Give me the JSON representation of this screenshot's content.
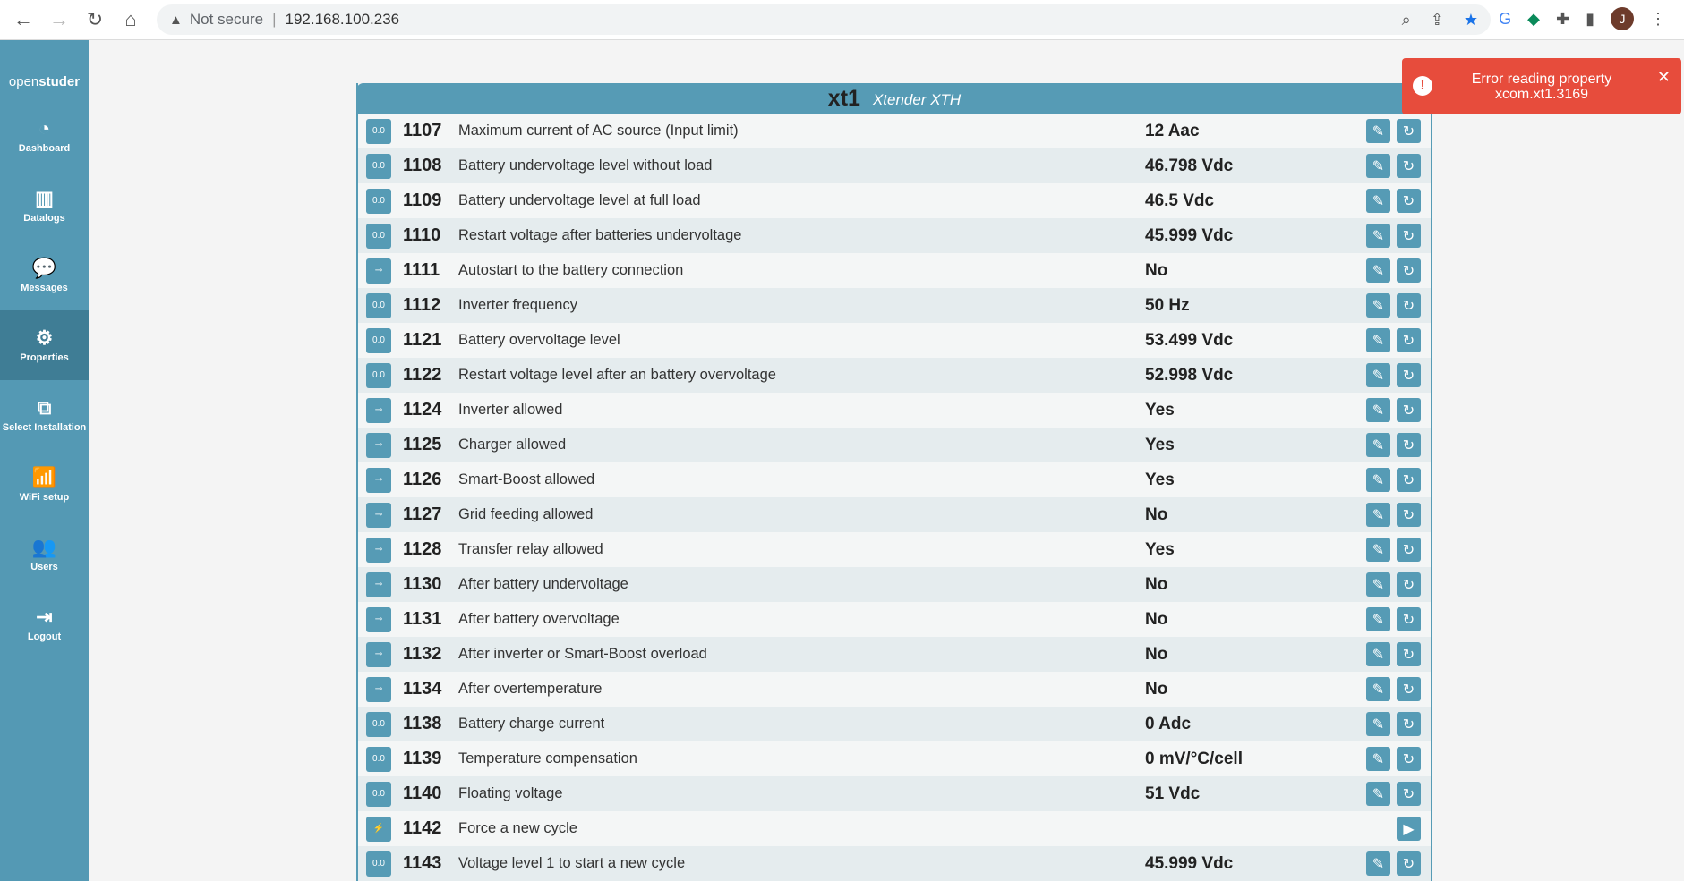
{
  "browser": {
    "security": "Not secure",
    "url": "192.168.100.236",
    "avatar": "J"
  },
  "sidebar": {
    "brand_light": "open",
    "brand_bold": "studer",
    "items": [
      {
        "label": "Dashboard",
        "icon": "◔"
      },
      {
        "label": "Datalogs",
        "icon": "▥"
      },
      {
        "label": "Messages",
        "icon": "💬"
      },
      {
        "label": "Properties",
        "icon": "⚙",
        "active": true
      },
      {
        "label": "Select Installation",
        "icon": "⧉"
      },
      {
        "label": "WiFi setup",
        "icon": "📶"
      },
      {
        "label": "Users",
        "icon": "👥"
      },
      {
        "label": "Logout",
        "icon": "⇥"
      }
    ]
  },
  "panel": {
    "title": "xt1",
    "subtitle": "Xtender XTH",
    "rows": [
      {
        "type": "float",
        "icon": "0.0",
        "id": "1107",
        "desc": "Maximum current of AC source (Input limit)",
        "value": "12 Aac"
      },
      {
        "type": "float",
        "icon": "0.0",
        "id": "1108",
        "desc": "Battery undervoltage level without load",
        "value": "46.798 Vdc"
      },
      {
        "type": "float",
        "icon": "0.0",
        "id": "1109",
        "desc": "Battery undervoltage level at full load",
        "value": "46.5 Vdc"
      },
      {
        "type": "float",
        "icon": "0.0",
        "id": "1110",
        "desc": "Restart voltage after batteries undervoltage",
        "value": "45.999 Vdc"
      },
      {
        "type": "bool",
        "icon": "⊸",
        "id": "1111",
        "desc": "Autostart to the battery connection",
        "value": "No"
      },
      {
        "type": "float",
        "icon": "0.0",
        "id": "1112",
        "desc": "Inverter frequency",
        "value": "50 Hz"
      },
      {
        "type": "float",
        "icon": "0.0",
        "id": "1121",
        "desc": "Battery overvoltage level",
        "value": "53.499 Vdc"
      },
      {
        "type": "float",
        "icon": "0.0",
        "id": "1122",
        "desc": "Restart voltage level after an battery overvoltage",
        "value": "52.998 Vdc"
      },
      {
        "type": "bool",
        "icon": "⊸",
        "id": "1124",
        "desc": "Inverter allowed",
        "value": "Yes"
      },
      {
        "type": "bool",
        "icon": "⊸",
        "id": "1125",
        "desc": "Charger allowed",
        "value": "Yes"
      },
      {
        "type": "bool",
        "icon": "⊸",
        "id": "1126",
        "desc": "Smart-Boost allowed",
        "value": "Yes"
      },
      {
        "type": "bool",
        "icon": "⊸",
        "id": "1127",
        "desc": "Grid feeding allowed",
        "value": "No"
      },
      {
        "type": "bool",
        "icon": "⊸",
        "id": "1128",
        "desc": "Transfer relay allowed",
        "value": "Yes"
      },
      {
        "type": "bool",
        "icon": "⊸",
        "id": "1130",
        "desc": "After battery undervoltage",
        "value": "No"
      },
      {
        "type": "bool",
        "icon": "⊸",
        "id": "1131",
        "desc": "After battery overvoltage",
        "value": "No"
      },
      {
        "type": "bool",
        "icon": "⊸",
        "id": "1132",
        "desc": "After inverter or Smart-Boost overload",
        "value": "No"
      },
      {
        "type": "bool",
        "icon": "⊸",
        "id": "1134",
        "desc": "After overtemperature",
        "value": "No"
      },
      {
        "type": "float",
        "icon": "0.0",
        "id": "1138",
        "desc": "Battery charge current",
        "value": "0 Adc"
      },
      {
        "type": "float",
        "icon": "0.0",
        "id": "1139",
        "desc": "Temperature compensation",
        "value": "0 mV/°C/cell"
      },
      {
        "type": "float",
        "icon": "0.0",
        "id": "1140",
        "desc": "Floating voltage",
        "value": "51 Vdc"
      },
      {
        "type": "signal",
        "icon": "⚡",
        "id": "1142",
        "desc": "Force a new cycle",
        "value": ""
      },
      {
        "type": "float",
        "icon": "0.0",
        "id": "1143",
        "desc": "Voltage level 1 to start a new cycle",
        "value": "45.999 Vdc"
      }
    ]
  },
  "toast": {
    "line1": "Error reading property",
    "line2": "xcom.xt1.3169",
    "color": "#e74c3c"
  },
  "colors": {
    "accent": "#569bb5",
    "sidebar": "#5499b4",
    "sidebar_active": "#3f7d95"
  }
}
